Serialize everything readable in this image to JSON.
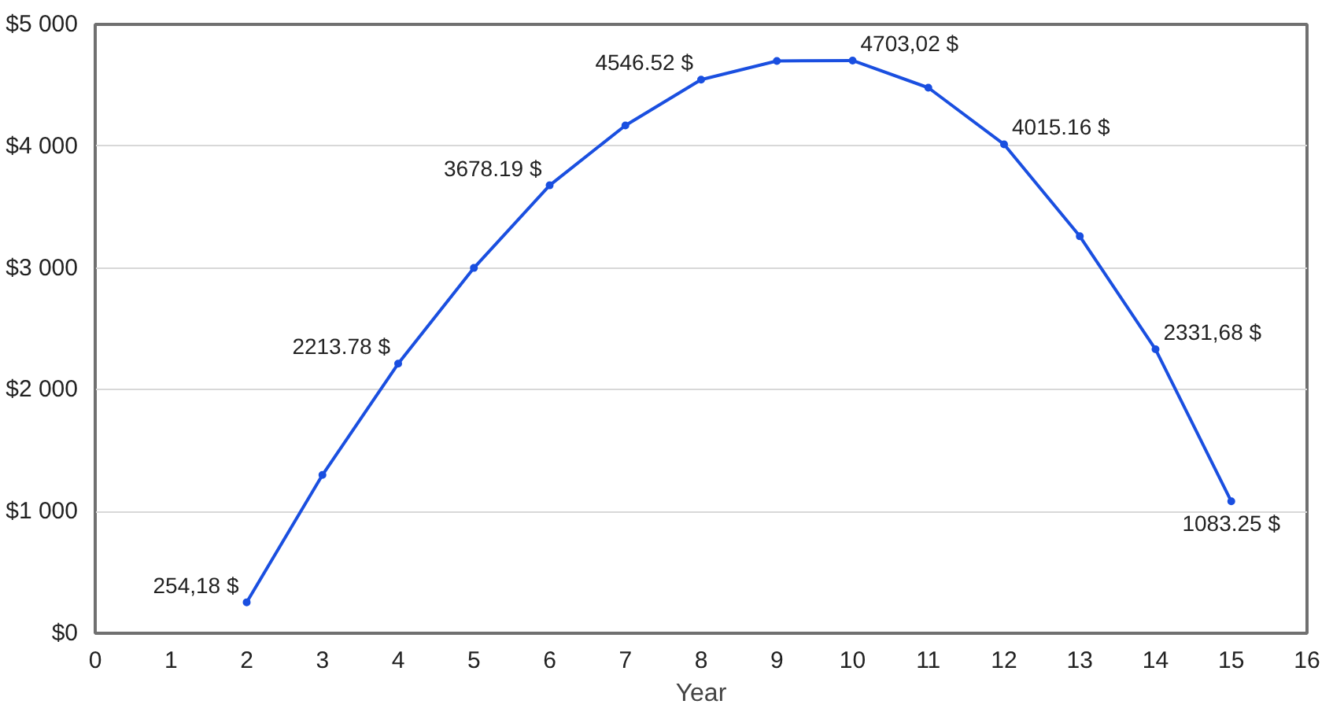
{
  "chart_data": {
    "type": "line",
    "xlabel": "Year",
    "x": [
      2,
      3,
      4,
      5,
      6,
      7,
      8,
      9,
      10,
      11,
      12,
      13,
      14,
      15
    ],
    "series": [
      {
        "color": "#1a4fe0",
        "values": [
          254.18,
          1300,
          2213.78,
          3000,
          3678.19,
          4170,
          4546.52,
          4700,
          4703.02,
          4480,
          4015.16,
          3260,
          2331.68,
          1083.25
        ],
        "value_labels": [
          "254,18 $",
          null,
          "2213.78 $",
          null,
          "3678.19 $",
          null,
          "4546.52 $",
          null,
          "4703,02 $",
          null,
          "4015.16 $",
          null,
          "2331,68 $",
          "1083.25 $"
        ]
      }
    ],
    "xlim": [
      0,
      16
    ],
    "xticks": [
      0,
      1,
      2,
      3,
      4,
      5,
      6,
      7,
      8,
      9,
      10,
      11,
      12,
      13,
      14,
      15,
      16
    ],
    "ylim": [
      0,
      5000
    ],
    "yticks": [
      {
        "value": 0,
        "label": "$0"
      },
      {
        "value": 1000,
        "label": "$1 000"
      },
      {
        "value": 2000,
        "label": "$2 000"
      },
      {
        "value": 3000,
        "label": "$3 000"
      },
      {
        "value": 4000,
        "label": "$4 000"
      },
      {
        "value": 5000,
        "label": "$5 000"
      }
    ],
    "grid": "y",
    "marker": "circle",
    "line_style": "solid"
  }
}
